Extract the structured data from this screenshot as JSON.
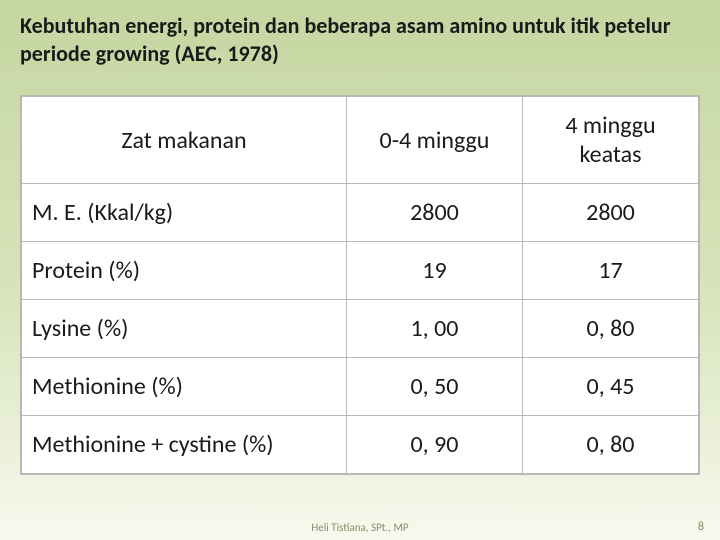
{
  "title": "Kebutuhan energi, protein dan beberapa asam amino untuk itik petelur periode growing (AEC, 1978)",
  "table": {
    "headers": {
      "col0": "Zat makanan",
      "col1": "0-4 minggu",
      "col2": "4 minggu keatas"
    },
    "rows": [
      {
        "label": "M. E. (Kkal/kg)",
        "v1": "2800",
        "v2": "2800"
      },
      {
        "label": "Protein (%)",
        "v1": "19",
        "v2": "17"
      },
      {
        "label": "Lysine (%)",
        "v1": "1, 00",
        "v2": "0, 80"
      },
      {
        "label": "Methionine (%)",
        "v1": "0, 50",
        "v2": "0, 45"
      },
      {
        "label": "Methionine + cystine (%)",
        "v1": "0, 90",
        "v2": "0, 80"
      }
    ]
  },
  "footer": {
    "author": "Heli Tistiana, SPt., MP",
    "page": "8"
  },
  "style": {
    "title_fontsize": 22,
    "cell_fontsize": 24,
    "bg_gradient_top": "#c5d6a1",
    "bg_gradient_bottom": "#f7f9ee",
    "table_bg": "#ffffff",
    "border_color": "#b8b8b8",
    "text_color": "#1a1a1a",
    "footer_color": "#8a8a6a"
  }
}
